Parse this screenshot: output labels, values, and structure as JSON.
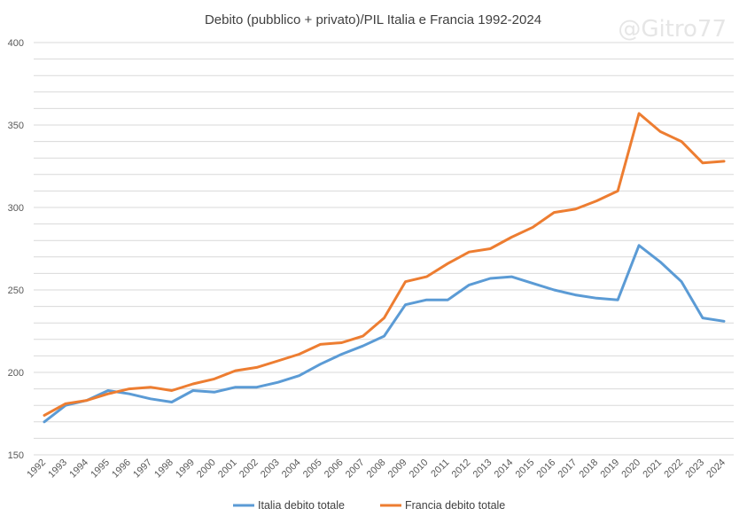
{
  "watermark": "@Gitro77",
  "colors": {
    "series_italia": "#5b9bd5",
    "series_francia": "#ed7d31",
    "grid": "#d9d9d9",
    "axis_text": "#595959",
    "title": "#404040"
  },
  "chart_data": {
    "type": "line",
    "title": "Debito (pubblico + privato)/PIL Italia e Francia 1992-2024",
    "xlabel": "",
    "ylabel": "",
    "ylim": [
      150,
      400
    ],
    "yticks": [
      150,
      200,
      250,
      300,
      350,
      400
    ],
    "grid_step": 10,
    "grid": true,
    "legend_position": "bottom",
    "categories": [
      "1992",
      "1993",
      "1994",
      "1995",
      "1996",
      "1997",
      "1998",
      "1999",
      "2000",
      "2001",
      "2002",
      "2003",
      "2004",
      "2005",
      "2006",
      "2007",
      "2008",
      "2009",
      "2010",
      "2011",
      "2012",
      "2013",
      "2014",
      "2015",
      "2016",
      "2017",
      "2018",
      "2019",
      "2020",
      "2021",
      "2022",
      "2023",
      "2024"
    ],
    "series": [
      {
        "name": "Italia debito totale",
        "color": "#5b9bd5",
        "values": [
          170,
          180,
          183,
          189,
          187,
          184,
          182,
          189,
          188,
          191,
          191,
          194,
          198,
          205,
          211,
          216,
          222,
          241,
          244,
          244,
          253,
          257,
          258,
          254,
          250,
          247,
          245,
          244,
          277,
          267,
          255,
          233,
          231
        ]
      },
      {
        "name": "Francia debito totale",
        "color": "#ed7d31",
        "values": [
          174,
          181,
          183,
          187,
          190,
          191,
          189,
          193,
          196,
          201,
          203,
          207,
          211,
          217,
          218,
          222,
          233,
          255,
          258,
          266,
          273,
          275,
          282,
          288,
          297,
          299,
          304,
          310,
          357,
          346,
          340,
          327,
          328
        ]
      }
    ]
  }
}
